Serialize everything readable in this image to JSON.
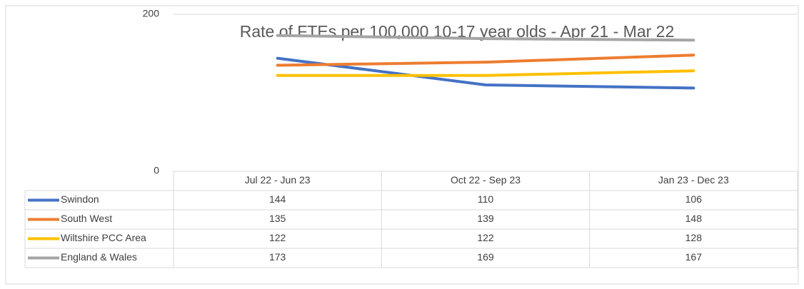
{
  "chart_data": {
    "type": "line",
    "title": "Rate of FTEs per 100,000 10-17 year olds - Apr 21 - Mar 22",
    "categories": [
      "Jul 22 - Jun 23",
      "Oct 22 - Sep 23",
      "Jan 23 - Dec 23"
    ],
    "series": [
      {
        "name": "Swindon",
        "color": "#4472c4",
        "values": [
          144,
          110,
          106
        ]
      },
      {
        "name": "South West",
        "color": "#ed7d31",
        "values": [
          135,
          139,
          148
        ]
      },
      {
        "name": "Wiltshire PCC Area",
        "color": "#ffc000",
        "values": [
          122,
          122,
          128
        ]
      },
      {
        "name": "England & Wales",
        "color": "#a5a5a5",
        "values": [
          173,
          169,
          167
        ]
      }
    ],
    "ylim": [
      0,
      200
    ],
    "yticks": [
      0,
      200
    ],
    "grid": true
  }
}
